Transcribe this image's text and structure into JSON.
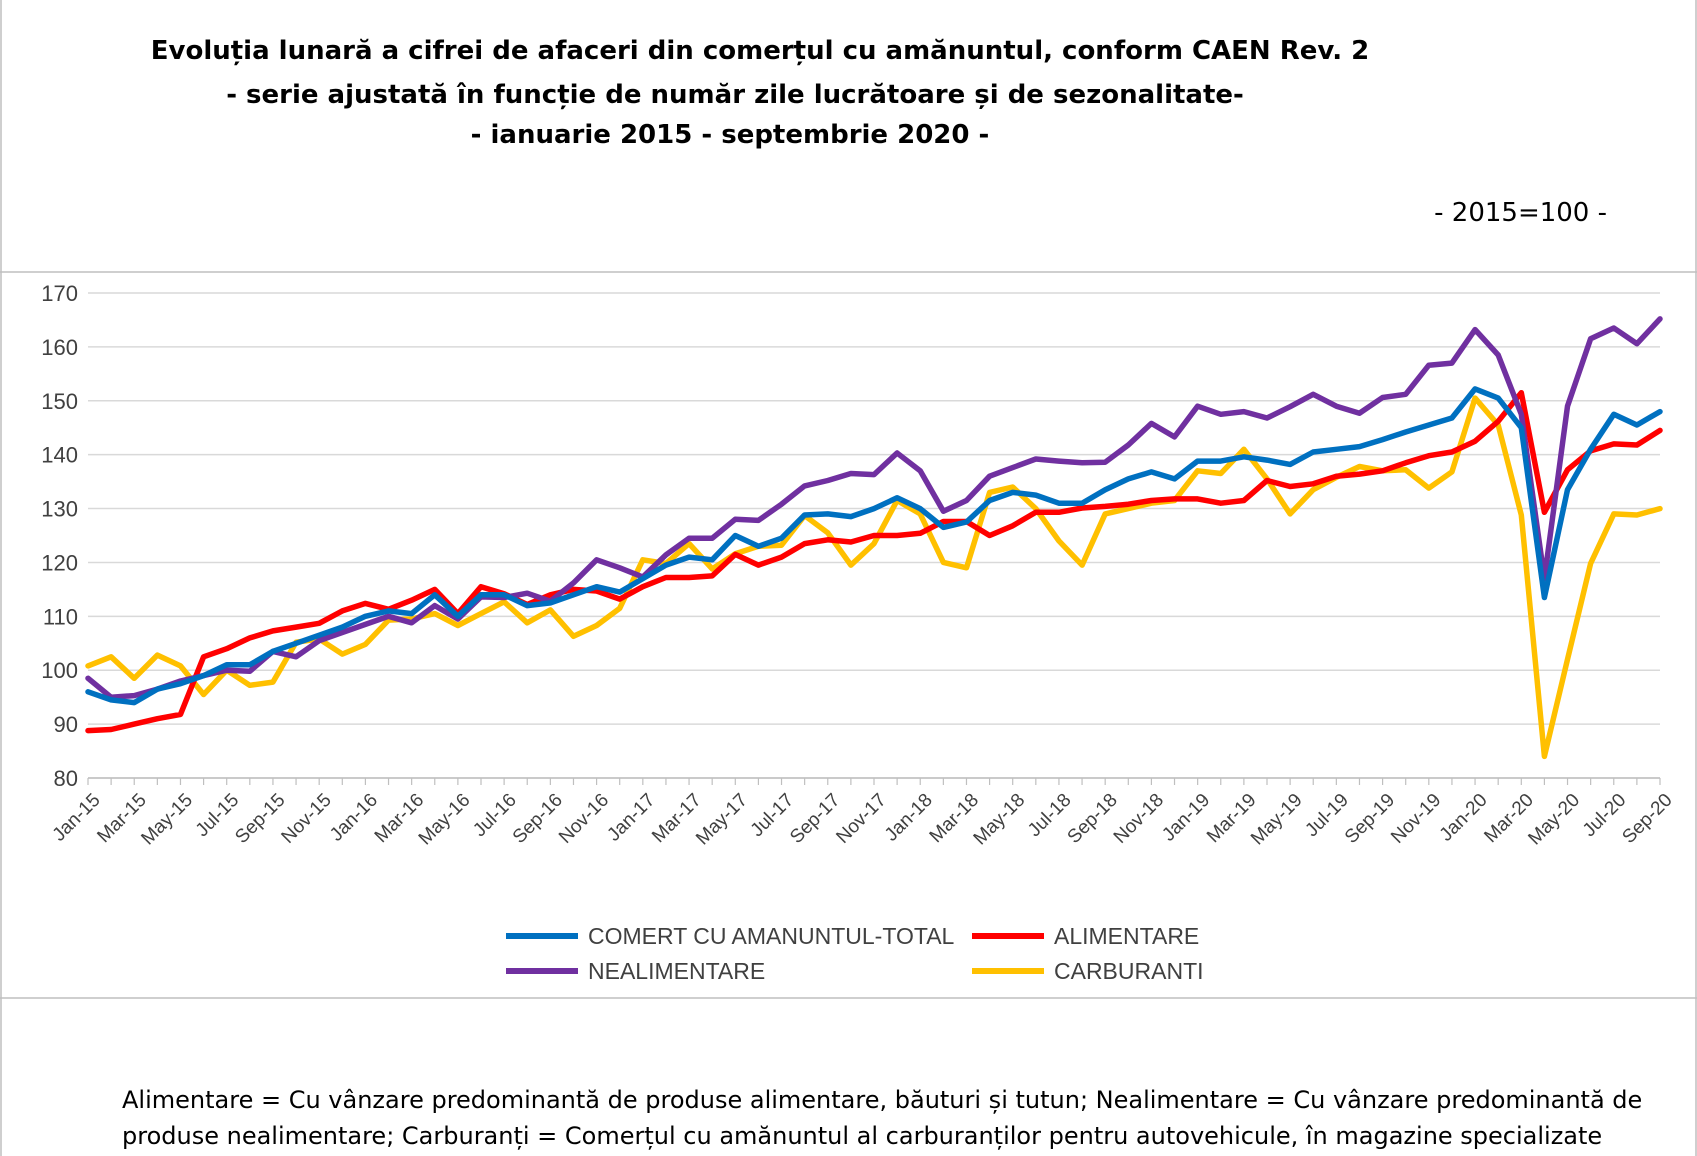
{
  "title_line1": "Evoluția lunară a cifrei de afaceri din comerțul cu amănuntul,  conform CAEN Rev. 2",
  "title_line2": "- serie ajustată în funcție de număr zile lucrătoare și de sezonalitate-",
  "title_line3": "- ianuarie 2015 -  septembrie 2020  -",
  "base_note": "- 2015=100 -",
  "footnote": "Alimentare = Cu vânzare predominantă de produse alimentare, băuturi și tutun; Nealimentare = Cu vânzare predominantă de produse  nealimentare; Carburanți = Comerțul cu amănuntul al carburanților pentru  autovehicule, în magazine specializate",
  "chart_data": {
    "type": "line",
    "title": "Evoluția lunară a cifrei de afaceri din comerțul cu amănuntul,  conform CAEN Rev. 2",
    "xlabel": "",
    "ylabel": "",
    "ylim": [
      80,
      170
    ],
    "yticks": [
      80,
      90,
      100,
      110,
      120,
      130,
      140,
      150,
      160,
      170
    ],
    "grid": true,
    "legend_position": "bottom",
    "categories": [
      "Jan-15",
      "Feb-15",
      "Mar-15",
      "Apr-15",
      "May-15",
      "Jun-15",
      "Jul-15",
      "Aug-15",
      "Sep-15",
      "Oct-15",
      "Nov-15",
      "Dec-15",
      "Jan-16",
      "Feb-16",
      "Mar-16",
      "Apr-16",
      "May-16",
      "Jun-16",
      "Jul-16",
      "Aug-16",
      "Sep-16",
      "Oct-16",
      "Nov-16",
      "Dec-16",
      "Jan-17",
      "Feb-17",
      "Mar-17",
      "Apr-17",
      "May-17",
      "Jun-17",
      "Jul-17",
      "Aug-17",
      "Sep-17",
      "Oct-17",
      "Nov-17",
      "Dec-17",
      "Jan-18",
      "Feb-18",
      "Mar-18",
      "Apr-18",
      "May-18",
      "Jun-18",
      "Jul-18",
      "Aug-18",
      "Sep-18",
      "Oct-18",
      "Nov-18",
      "Dec-18",
      "Jan-19",
      "Feb-19",
      "Mar-19",
      "Apr-19",
      "May-19",
      "Jun-19",
      "Jul-19",
      "Aug-19",
      "Sep-19",
      "Oct-19",
      "Nov-19",
      "Dec-19",
      "Jan-20",
      "Feb-20",
      "Mar-20",
      "Apr-20",
      "May-20",
      "Jun-20",
      "Jul-20",
      "Aug-20",
      "Sep-20"
    ],
    "tick_labels": [
      "Jan-15",
      "Mar-15",
      "May-15",
      "Jul-15",
      "Sep-15",
      "Nov-15",
      "Jan-16",
      "Mar-16",
      "May-16",
      "Jul-16",
      "Sep-16",
      "Nov-16",
      "Jan-17",
      "Mar-17",
      "May-17",
      "Jul-17",
      "Sep-17",
      "Nov-17",
      "Jan-18",
      "Mar-18",
      "May-18",
      "Jul-18",
      "Sep-18",
      "Nov-18",
      "Jan-19",
      "Mar-19",
      "May-19",
      "Jul-19",
      "Sep-19",
      "Nov-19",
      "Jan-20",
      "Mar-20",
      "May-20",
      "Jul-20",
      "Sep-20"
    ],
    "series": [
      {
        "name": "COMERT CU AMANUNTUL-TOTAL",
        "color": "#0070C0",
        "values": [
          96.0,
          94.5,
          94.0,
          96.5,
          97.5,
          99.0,
          101.0,
          101.0,
          103.5,
          105.0,
          106.5,
          108.0,
          110.0,
          111.0,
          110.5,
          114.0,
          110.0,
          114.0,
          114.0,
          112.0,
          112.5,
          114.0,
          115.5,
          114.5,
          117.0,
          119.5,
          121.0,
          120.5,
          125.0,
          123.0,
          124.5,
          128.8,
          129.0,
          128.5,
          130.0,
          132.0,
          130.0,
          126.5,
          127.5,
          131.5,
          133.0,
          132.5,
          131.0,
          131.0,
          133.5,
          135.5,
          136.8,
          135.5,
          138.8,
          138.8,
          139.6,
          139.0,
          138.2,
          140.5,
          141.0,
          141.5,
          142.8,
          144.2,
          145.5,
          146.8,
          152.2,
          150.5,
          145.0,
          113.5,
          133.5,
          141.0,
          147.5,
          145.5,
          148.0
        ]
      },
      {
        "name": "ALIMENTARE",
        "color": "#FF0000",
        "values": [
          88.8,
          89.0,
          90.0,
          91.0,
          91.8,
          102.5,
          104.0,
          106.0,
          107.3,
          108.0,
          108.7,
          111.0,
          112.4,
          111.3,
          113.0,
          115.0,
          110.5,
          115.5,
          114.2,
          112.2,
          114.0,
          115.0,
          114.7,
          113.2,
          115.5,
          117.2,
          117.2,
          117.5,
          121.5,
          119.5,
          121.0,
          123.5,
          124.2,
          123.8,
          125.0,
          125.0,
          125.4,
          127.6,
          127.6,
          125.0,
          126.8,
          129.3,
          129.3,
          130.1,
          130.4,
          130.8,
          131.5,
          131.8,
          131.8,
          131.0,
          131.5,
          135.2,
          134.1,
          134.6,
          136.0,
          136.4,
          137.0,
          138.5,
          139.8,
          140.5,
          142.5,
          146.2,
          151.5,
          129.3,
          137.2,
          140.7,
          142.0,
          141.8,
          144.5
        ]
      },
      {
        "name": "NEALIMENTARE",
        "color": "#7030A0",
        "values": [
          98.5,
          95.0,
          95.3,
          96.5,
          98.0,
          99.0,
          100.0,
          99.8,
          103.5,
          102.5,
          105.5,
          107.0,
          108.5,
          110.0,
          108.8,
          112.0,
          109.5,
          113.6,
          113.5,
          114.3,
          112.8,
          116.2,
          120.5,
          119.0,
          117.3,
          121.4,
          124.5,
          124.5,
          128.0,
          127.8,
          130.8,
          134.2,
          135.2,
          136.5,
          136.3,
          140.3,
          137.0,
          129.5,
          131.5,
          136.0,
          137.6,
          139.2,
          138.8,
          138.5,
          138.6,
          141.8,
          145.8,
          143.3,
          149.0,
          147.5,
          148.0,
          146.8,
          148.9,
          151.2,
          149.0,
          147.7,
          150.6,
          151.2,
          156.6,
          157.0,
          163.2,
          158.5,
          147.5,
          117.0,
          149.0,
          161.5,
          163.5,
          160.6,
          165.2
        ]
      },
      {
        "name": "CARBURANTI",
        "color": "#FFC000",
        "values": [
          100.8,
          102.5,
          98.5,
          102.8,
          100.8,
          95.5,
          100.0,
          97.2,
          97.8,
          105.2,
          105.8,
          103.0,
          104.8,
          109.3,
          109.5,
          110.5,
          108.3,
          110.5,
          112.7,
          108.8,
          111.2,
          106.3,
          108.3,
          111.5,
          120.5,
          119.8,
          123.5,
          118.8,
          121.6,
          123.0,
          123.2,
          128.7,
          125.5,
          119.5,
          123.5,
          131.5,
          129.0,
          120.0,
          119.0,
          133.0,
          134.0,
          130.0,
          124.0,
          119.5,
          129.0,
          130.0,
          131.0,
          131.5,
          137.0,
          136.5,
          141.0,
          135.5,
          129.0,
          133.5,
          135.8,
          137.8,
          137.0,
          137.2,
          133.8,
          136.8,
          150.5,
          145.5,
          128.8,
          84.0,
          102.0,
          119.8,
          129.0,
          128.8,
          130.0
        ]
      }
    ]
  }
}
